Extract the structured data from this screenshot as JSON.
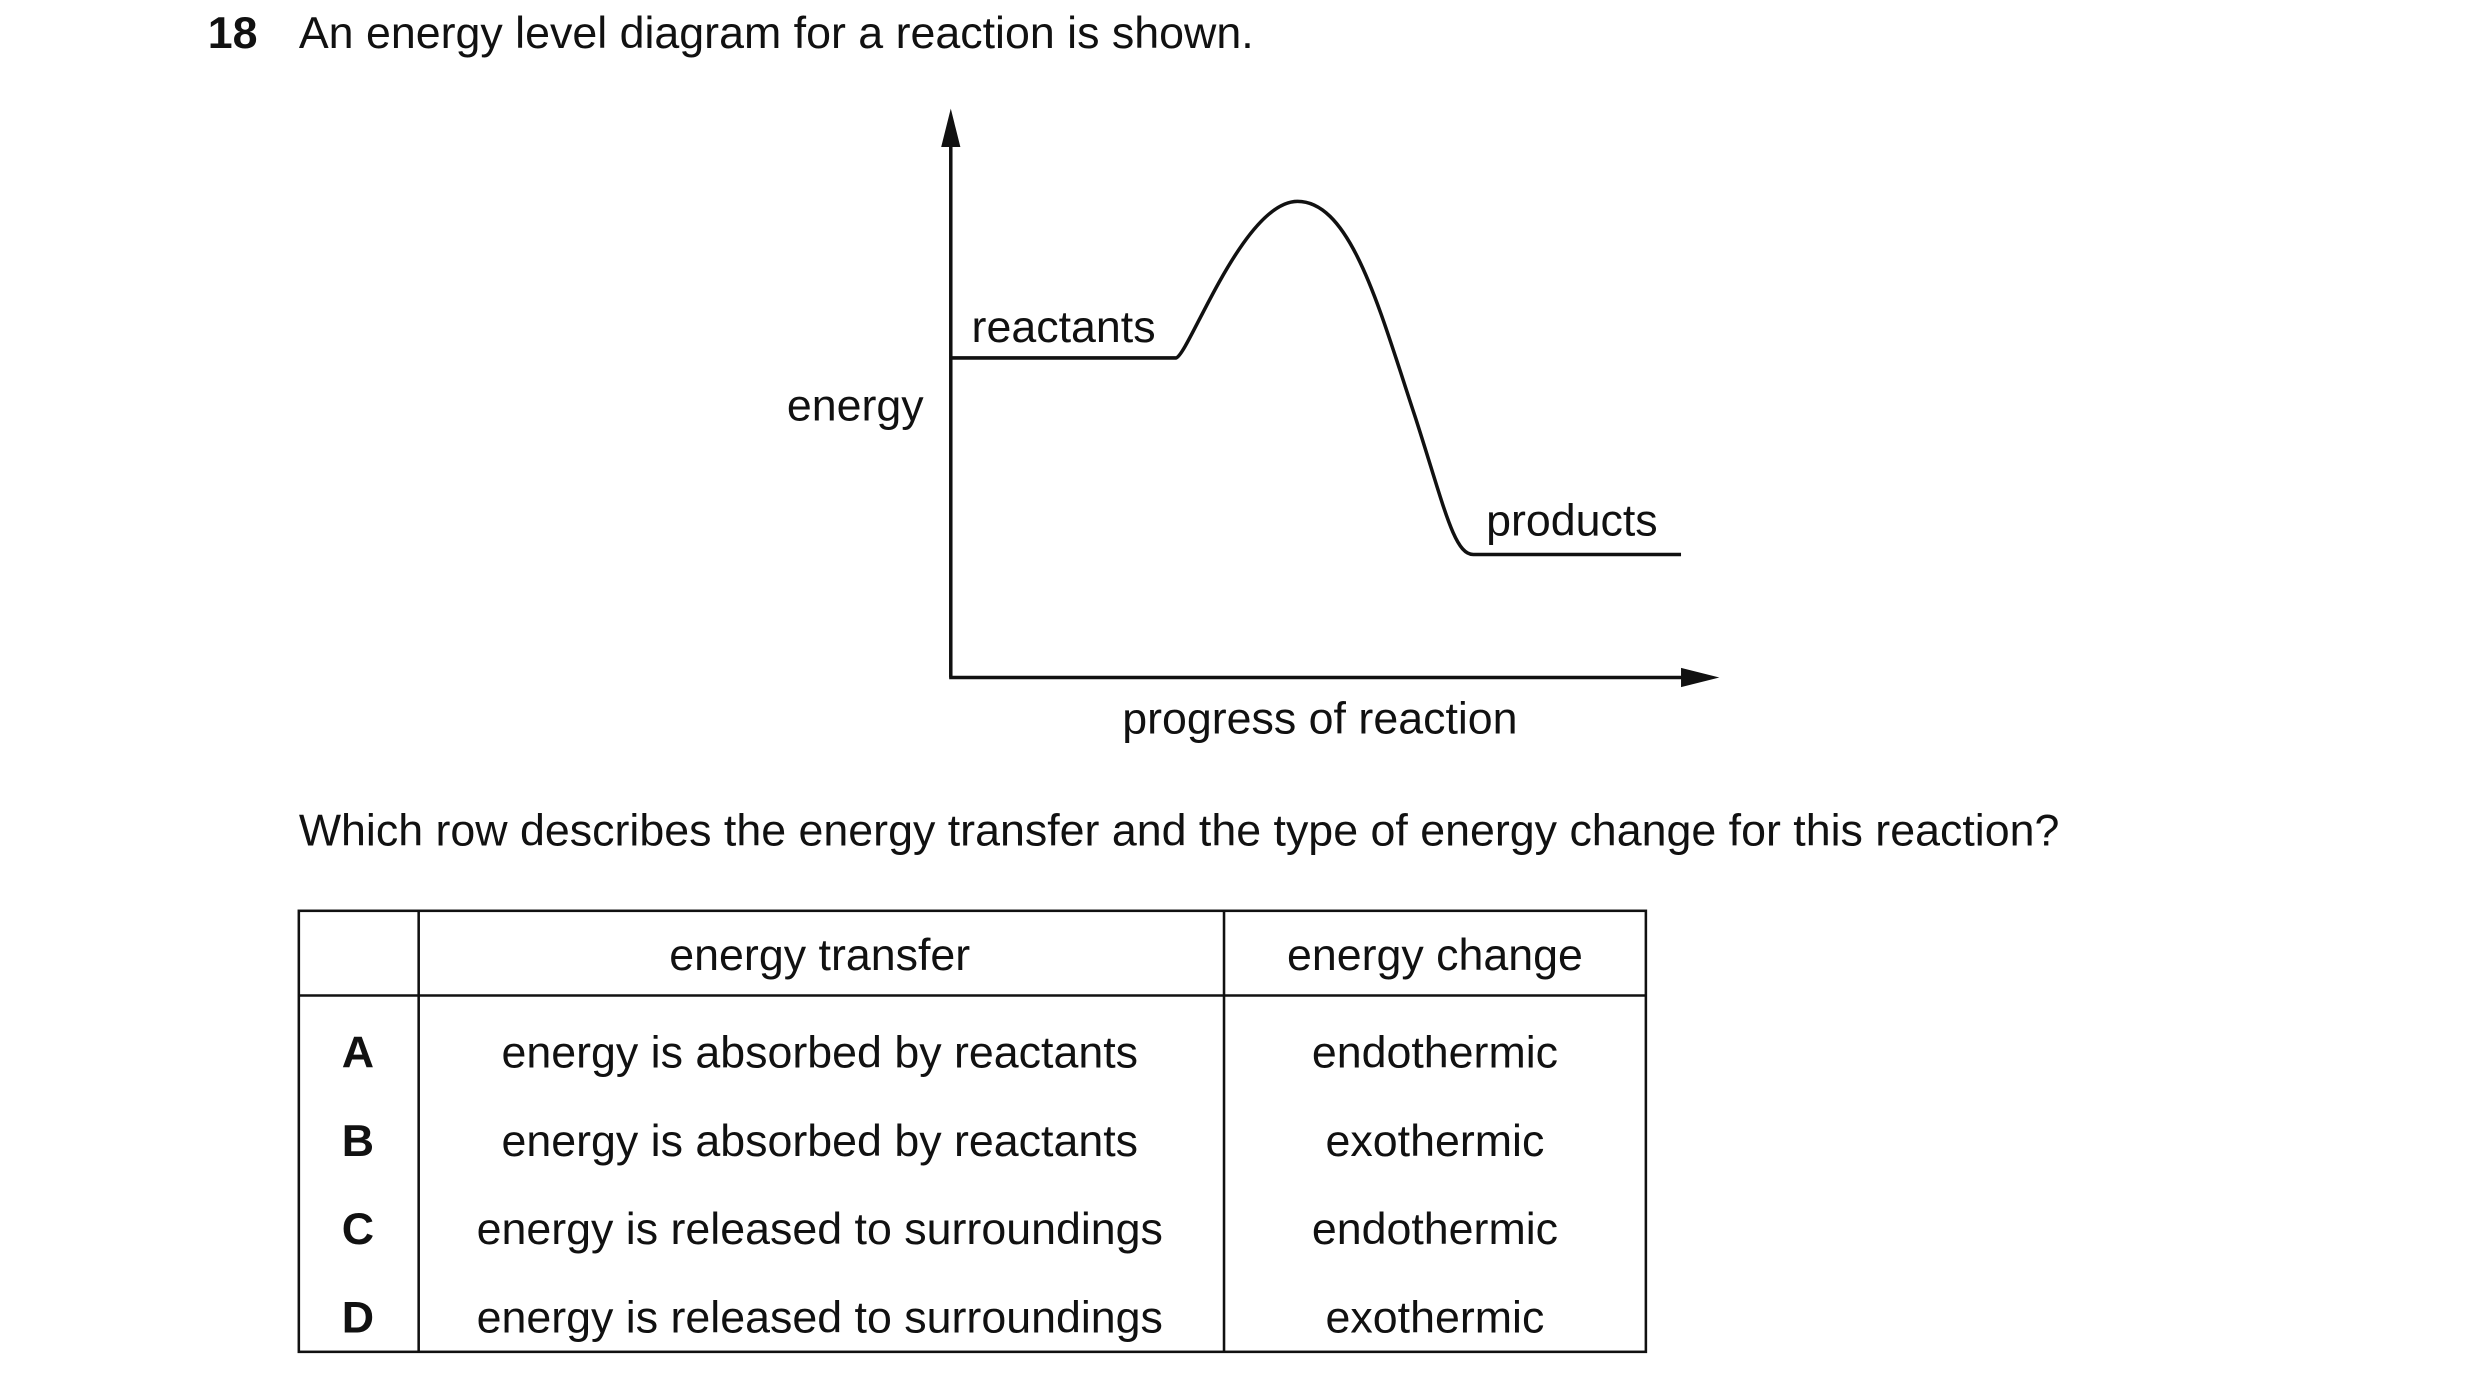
{
  "question": {
    "number": "18",
    "text": "An energy level diagram for a reaction is shown."
  },
  "diagram": {
    "y_axis_label": "energy",
    "x_axis_label": "progress of reaction",
    "reactants_label": "reactants",
    "products_label": "products"
  },
  "prompt": "Which row describes the energy transfer and the type of energy change for this reaction?",
  "table": {
    "header": [
      "energy transfer",
      "energy change"
    ],
    "rows": [
      [
        "A",
        "energy is absorbed by reactants",
        "endothermic"
      ],
      [
        "B",
        "energy is absorbed by reactants",
        "exothermic"
      ],
      [
        "C",
        "energy is released to surroundings",
        "endothermic"
      ],
      [
        "D",
        "energy is released to surroundings",
        "exothermic"
      ]
    ]
  }
}
